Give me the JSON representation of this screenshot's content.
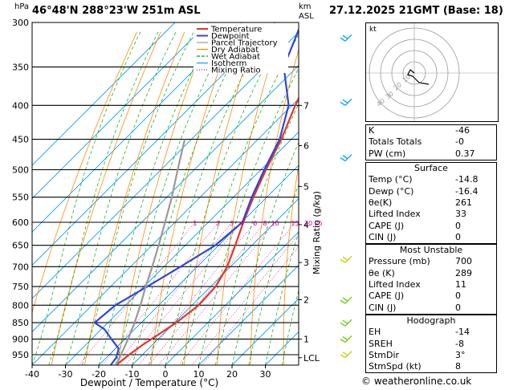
{
  "header": {
    "location": "46°48'N 288°23'W 251m ASL",
    "datetime": "27.12.2025 21GMT (Base: 18)",
    "hpa_label": "hPa",
    "km_label": "km",
    "asl_label": "ASL"
  },
  "chart_data": {
    "type": "skew-t",
    "xlabel": "Dewpoint / Temperature (°C)",
    "ylabel_right": "Mixing Ratio (g/kg)",
    "xlim": [
      -40,
      40
    ],
    "ylim": [
      1000,
      300
    ],
    "x_ticks": [
      -40,
      -30,
      -20,
      -10,
      0,
      10,
      20,
      30
    ],
    "pressure_ticks": [
      300,
      350,
      400,
      450,
      500,
      550,
      600,
      650,
      700,
      750,
      800,
      850,
      900,
      950
    ],
    "height_ticks_km": [
      {
        "label": "7",
        "p": 400
      },
      {
        "label": "6",
        "p": 460
      },
      {
        "label": "5",
        "p": 530
      },
      {
        "label": "4",
        "p": 605
      },
      {
        "label": "3",
        "p": 690
      },
      {
        "label": "2",
        "p": 785
      },
      {
        "label": "1",
        "p": 900
      },
      {
        "label": "LCL",
        "p": 960
      }
    ],
    "mixing_ratio_labels": [
      "1",
      "2",
      "3",
      "4",
      "6",
      "8",
      "10",
      "15",
      "20",
      "25"
    ],
    "legend": [
      {
        "label": "Temperature",
        "color": "#e8322d"
      },
      {
        "label": "Dewpoint",
        "color": "#2d46e0"
      },
      {
        "label": "Parcel Trajectory",
        "color": "#999999"
      },
      {
        "label": "Dry Adiabat",
        "color": "#ff8c00"
      },
      {
        "label": "Wet Adiabat",
        "color": "#00aa00"
      },
      {
        "label": "Isotherm",
        "color": "#00a0ff"
      },
      {
        "label": "Mixing Ratio",
        "color": "#d000a0"
      }
    ],
    "series": [
      {
        "name": "Temperature",
        "points": [
          [
            985,
            -14.8
          ],
          [
            950,
            -14
          ],
          [
            920,
            -13
          ],
          [
            900,
            -12
          ],
          [
            870,
            -10.5
          ],
          [
            850,
            -9.5
          ],
          [
            800,
            -8
          ],
          [
            750,
            -8.5
          ],
          [
            700,
            -11
          ],
          [
            650,
            -15
          ],
          [
            600,
            -19.5
          ],
          [
            550,
            -24
          ],
          [
            500,
            -28.5
          ],
          [
            450,
            -33
          ],
          [
            400,
            -39
          ],
          [
            350,
            -45
          ],
          [
            300,
            -52
          ]
        ]
      },
      {
        "name": "Dewpoint",
        "points": [
          [
            985,
            -16.4
          ],
          [
            960,
            -17
          ],
          [
            930,
            -19
          ],
          [
            900,
            -24
          ],
          [
            870,
            -29
          ],
          [
            850,
            -34
          ],
          [
            800,
            -33
          ],
          [
            750,
            -29
          ],
          [
            700,
            -25
          ],
          [
            650,
            -21
          ],
          [
            600,
            -19.8
          ],
          [
            550,
            -24.5
          ],
          [
            500,
            -29
          ],
          [
            450,
            -33.5
          ],
          [
            400,
            -41
          ],
          [
            350,
            -54
          ],
          [
            300,
            -62
          ]
        ]
      },
      {
        "name": "Parcel Trajectory",
        "points": [
          [
            985,
            -14.8
          ],
          [
            960,
            -16
          ],
          [
            900,
            -19
          ],
          [
            850,
            -22
          ],
          [
            800,
            -25.5
          ],
          [
            750,
            -29.5
          ],
          [
            700,
            -33.5
          ],
          [
            650,
            -38
          ],
          [
            600,
            -43
          ],
          [
            550,
            -48.5
          ],
          [
            500,
            -55
          ],
          [
            450,
            -62
          ]
        ]
      }
    ]
  },
  "indices": {
    "rows": [
      {
        "label": "K",
        "value": "-46"
      },
      {
        "label": "Totals Totals",
        "value": "-0"
      },
      {
        "label": "PW (cm)",
        "value": "0.37"
      }
    ],
    "surface": {
      "title": "Surface",
      "rows": [
        {
          "label": "Temp (°C)",
          "value": "-14.8"
        },
        {
          "label": "Dewp (°C)",
          "value": "-16.4"
        },
        {
          "label": "θe(K)",
          "value": "261"
        },
        {
          "label": "Lifted Index",
          "value": "33"
        },
        {
          "label": "CAPE (J)",
          "value": "0"
        },
        {
          "label": "CIN (J)",
          "value": "0"
        }
      ]
    },
    "most_unstable": {
      "title": "Most Unstable",
      "rows": [
        {
          "label": "Pressure (mb)",
          "value": "700"
        },
        {
          "label": "θe (K)",
          "value": "289"
        },
        {
          "label": "Lifted Index",
          "value": "11"
        },
        {
          "label": "CAPE (J)",
          "value": "0"
        },
        {
          "label": "CIN (J)",
          "value": "0"
        }
      ]
    },
    "hodograph": {
      "title": "Hodograph",
      "rows": [
        {
          "label": "EH",
          "value": "-14"
        },
        {
          "label": "SREH",
          "value": "-8"
        },
        {
          "label": "StmDir",
          "value": "3°"
        },
        {
          "label": "StmSpd (kt)",
          "value": "8"
        }
      ]
    }
  },
  "hodo": {
    "label": "kt",
    "rings": [
      "10",
      "20",
      "30",
      "40"
    ]
  },
  "copyright": "© weatheronline.co.uk"
}
